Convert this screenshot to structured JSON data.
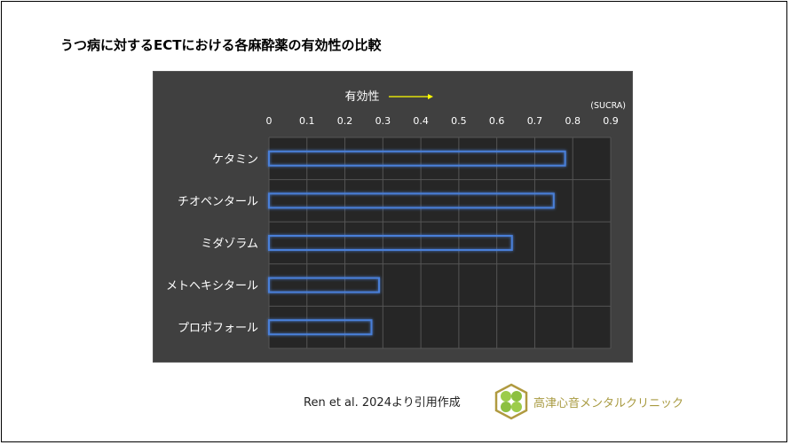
{
  "title": "うつ病に対するECTにおける各麻酔薬の有効性の比較",
  "citation": "Ren et al. 2024より引用作成",
  "clinic_name": "高津心音メンタルクリニック",
  "colors": {
    "panel": "#404040",
    "plot": "#262626",
    "bar_outline": "#4a7fd8",
    "arrow": "#ffff00"
  },
  "chart_data": {
    "type": "bar",
    "orientation": "horizontal",
    "xlabel": "有効性",
    "unit": "(SUCRA)",
    "categories": [
      "ケタミン",
      "チオペンタール",
      "ミダゾラム",
      "メトヘキシタール",
      "プロポフォール"
    ],
    "values": [
      0.78,
      0.75,
      0.64,
      0.29,
      0.27
    ],
    "xlim": [
      0,
      0.9
    ],
    "ticks": [
      "0",
      "0.1",
      "0.2",
      "0.3",
      "0.4",
      "0.5",
      "0.6",
      "0.7",
      "0.8",
      "0.9"
    ],
    "grid": true
  }
}
